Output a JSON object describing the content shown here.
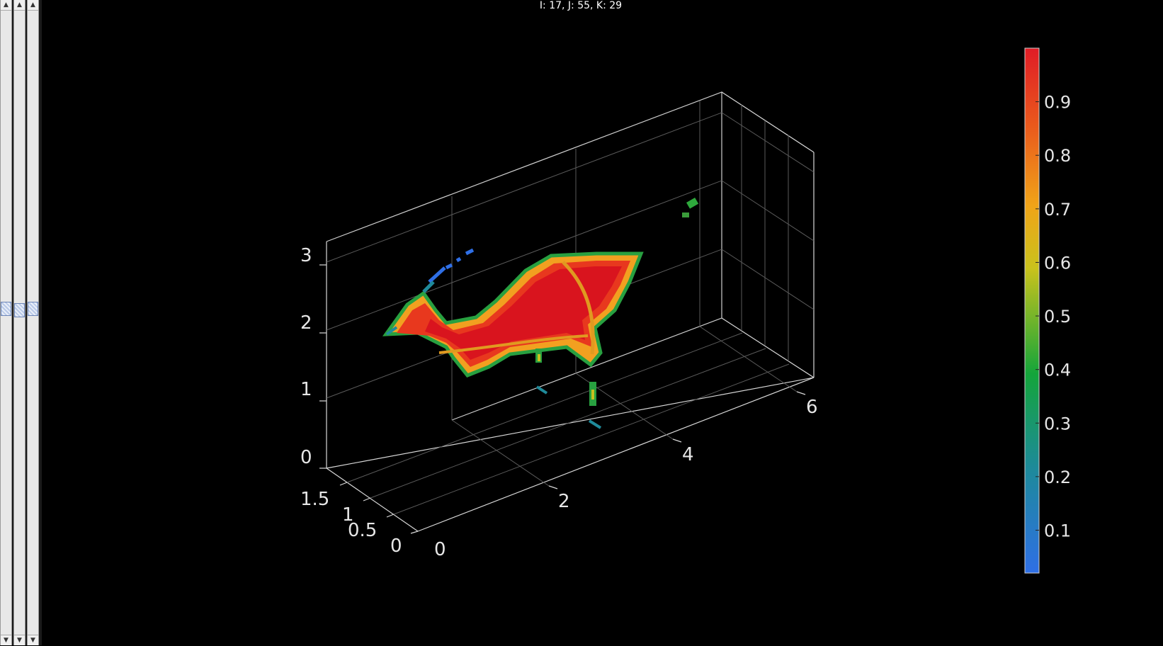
{
  "readout": "I: 17, J:  55, K: 29",
  "sliders": [
    {
      "name": "I",
      "value_fraction": 0.5
    },
    {
      "name": "J",
      "value_fraction": 0.5
    },
    {
      "name": "K",
      "value_fraction": 0.5
    }
  ],
  "chart_data": {
    "type": "volume-slice-3d",
    "title": "",
    "xlabel": "",
    "ylabel": "",
    "zlabel": "",
    "x_ticks": [
      "0",
      "2",
      "4",
      "6"
    ],
    "y_ticks": [
      "0",
      "0.5",
      "1",
      "1.5"
    ],
    "z_ticks": [
      "0",
      "1",
      "2",
      "3"
    ],
    "xlim": [
      0,
      6.5
    ],
    "ylim": [
      0,
      1.6
    ],
    "zlim": [
      0,
      3.3
    ],
    "grid": true,
    "colormap": "blue-green-yellow-red",
    "colorbar": {
      "range": [
        0.02,
        1.0
      ],
      "ticks": [
        "0.1",
        "0.2",
        "0.3",
        "0.4",
        "0.5",
        "0.6",
        "0.7",
        "0.8",
        "0.9"
      ],
      "tick_values": [
        0.1,
        0.2,
        0.3,
        0.4,
        0.5,
        0.6,
        0.7,
        0.8,
        0.9
      ],
      "placement": "right"
    },
    "colors": {
      "low": "#2a6fe8",
      "mid": "#18a838",
      "midhigh": "#e8c020",
      "high": "#e01e24"
    }
  }
}
